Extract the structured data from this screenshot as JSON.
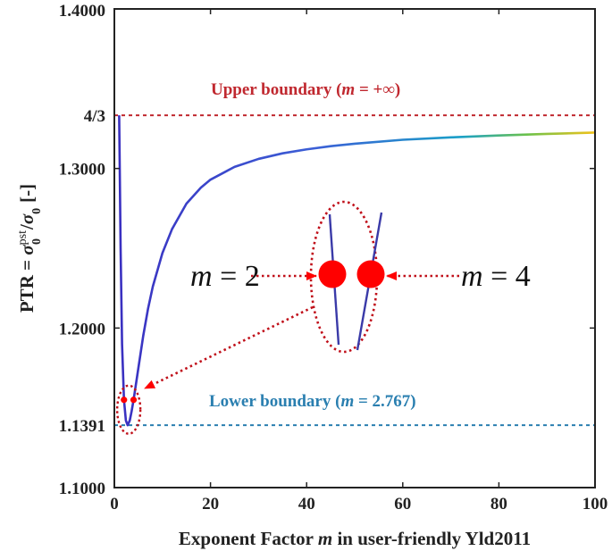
{
  "chart_data": {
    "type": "line",
    "xlabel": {
      "prefix": "Exponent Factor ",
      "var": "m",
      "suffix": " in user-friendly Yld2011"
    },
    "ylabel": {
      "prefix": "PTR = ",
      "num_sym": "σ",
      "num_sup": "pst",
      "num_sub": "0",
      "slash": "/",
      "den_sym": "σ",
      "den_sub": "0",
      "unit": "[-]"
    },
    "xlim": [
      0,
      100
    ],
    "ylim": [
      1.1,
      1.4
    ],
    "x_ticks": [
      {
        "value": 0,
        "label": "0"
      },
      {
        "value": 20,
        "label": "20"
      },
      {
        "value": 40,
        "label": "40"
      },
      {
        "value": 60,
        "label": "60"
      },
      {
        "value": 80,
        "label": "80"
      },
      {
        "value": 100,
        "label": "100"
      }
    ],
    "y_ticks": [
      {
        "value": 1.1,
        "label": "1.1000"
      },
      {
        "value": 1.2,
        "label": "1.2000"
      },
      {
        "value": 1.3,
        "label": "1.3000"
      },
      {
        "value": 1.4,
        "label": "1.4000"
      }
    ],
    "grid": false,
    "series": [
      {
        "x": [
          1.0,
          1.3,
          1.6,
          2.0,
          2.4,
          2.767,
          3.2,
          3.6,
          4.0,
          5,
          6,
          7,
          8,
          10,
          12,
          15,
          18,
          20,
          25,
          30,
          35,
          40,
          45,
          50,
          60,
          70,
          80,
          90,
          100
        ],
        "y": [
          1.3333,
          1.25,
          1.19,
          1.155,
          1.142,
          1.1391,
          1.142,
          1.148,
          1.155,
          1.175,
          1.195,
          1.212,
          1.226,
          1.247,
          1.262,
          1.278,
          1.288,
          1.293,
          1.301,
          1.306,
          1.3095,
          1.312,
          1.314,
          1.3155,
          1.318,
          1.3195,
          1.3207,
          1.3217,
          1.3225
        ]
      }
    ],
    "reference_lines": [
      {
        "y": 1.3333333,
        "tick_label": "4/3",
        "label_prefix": "Upper boundary (",
        "label_var": "m",
        "label_suffix": " = +∞)",
        "color": "#c0282f"
      },
      {
        "y": 1.1391,
        "tick_label": "1.1391",
        "label_prefix": "Lower boundary (",
        "label_var": "m",
        "label_suffix": " = 2.767)",
        "color": "#2a7fb0"
      }
    ],
    "annotations": [
      {
        "x": 2,
        "y": 1.155,
        "var": "m",
        "text": " = 2"
      },
      {
        "x": 4,
        "y": 1.155,
        "var": "m",
        "text": " = 4"
      }
    ],
    "colors": {
      "line_start": "#3a2fc0",
      "line_mid": "#1aa0c8",
      "line_green": "#6cc24a",
      "line_end": "#f2c21a",
      "marker": "#ff0000",
      "annotation": "#c0101a"
    }
  }
}
